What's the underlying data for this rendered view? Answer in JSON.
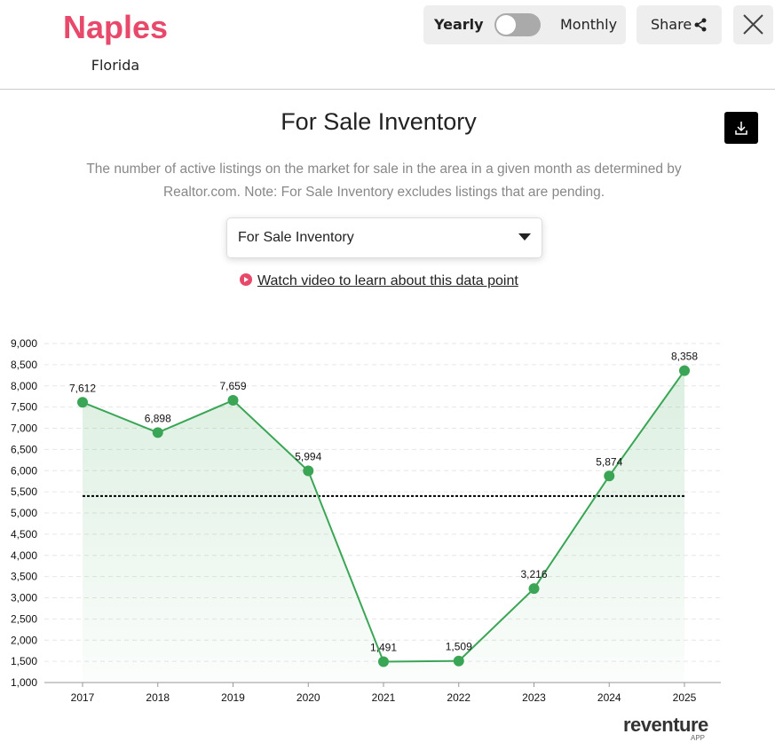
{
  "header": {
    "city": "Naples",
    "state": "Florida",
    "toggle_left": "Yearly",
    "toggle_right": "Monthly",
    "share": "Share"
  },
  "panel": {
    "description": "The number of active listings on the market for sale in the area in a given month as determined by Realtor.com. Note: For Sale Inventory excludes listings that are pending.",
    "dropdown": "For Sale Inventory",
    "video_link": "Watch video to learn about this data point"
  },
  "logo": {
    "name": "reventure",
    "sub": "APP"
  },
  "chart_data": {
    "type": "line",
    "title": "For Sale Inventory",
    "categories": [
      "2017",
      "2018",
      "2019",
      "2020",
      "2021",
      "2022",
      "2023",
      "2024",
      "2025"
    ],
    "values": [
      7612,
      6898,
      7659,
      5994,
      1491,
      1509,
      3216,
      5874,
      8358
    ],
    "value_labels": [
      "7,612",
      "6,898",
      "7,659",
      "5,994",
      "1,491",
      "1,509",
      "3,216",
      "5,874",
      "8,358"
    ],
    "color": "#3aa655",
    "average_line": 5401,
    "ylim": [
      1000,
      9000
    ],
    "yticks": [
      {
        "value": 1000,
        "label": "1,000"
      },
      {
        "value": 1500,
        "label": "1,500"
      },
      {
        "value": 2000,
        "label": "2,000"
      },
      {
        "value": 2500,
        "label": "2,500"
      },
      {
        "value": 3000,
        "label": "3,000"
      },
      {
        "value": 3500,
        "label": "3,500"
      },
      {
        "value": 4000,
        "label": "4,000"
      },
      {
        "value": 4500,
        "label": "4,500"
      },
      {
        "value": 5000,
        "label": "5,000"
      },
      {
        "value": 5500,
        "label": "5,500"
      },
      {
        "value": 6000,
        "label": "6,000"
      },
      {
        "value": 6500,
        "label": "6,500"
      },
      {
        "value": 7000,
        "label": "7,000"
      },
      {
        "value": 7500,
        "label": "7,500"
      },
      {
        "value": 8000,
        "label": "8,000"
      },
      {
        "value": 8500,
        "label": "8,500"
      },
      {
        "value": 9000,
        "label": "9,000"
      }
    ],
    "grid": true
  }
}
